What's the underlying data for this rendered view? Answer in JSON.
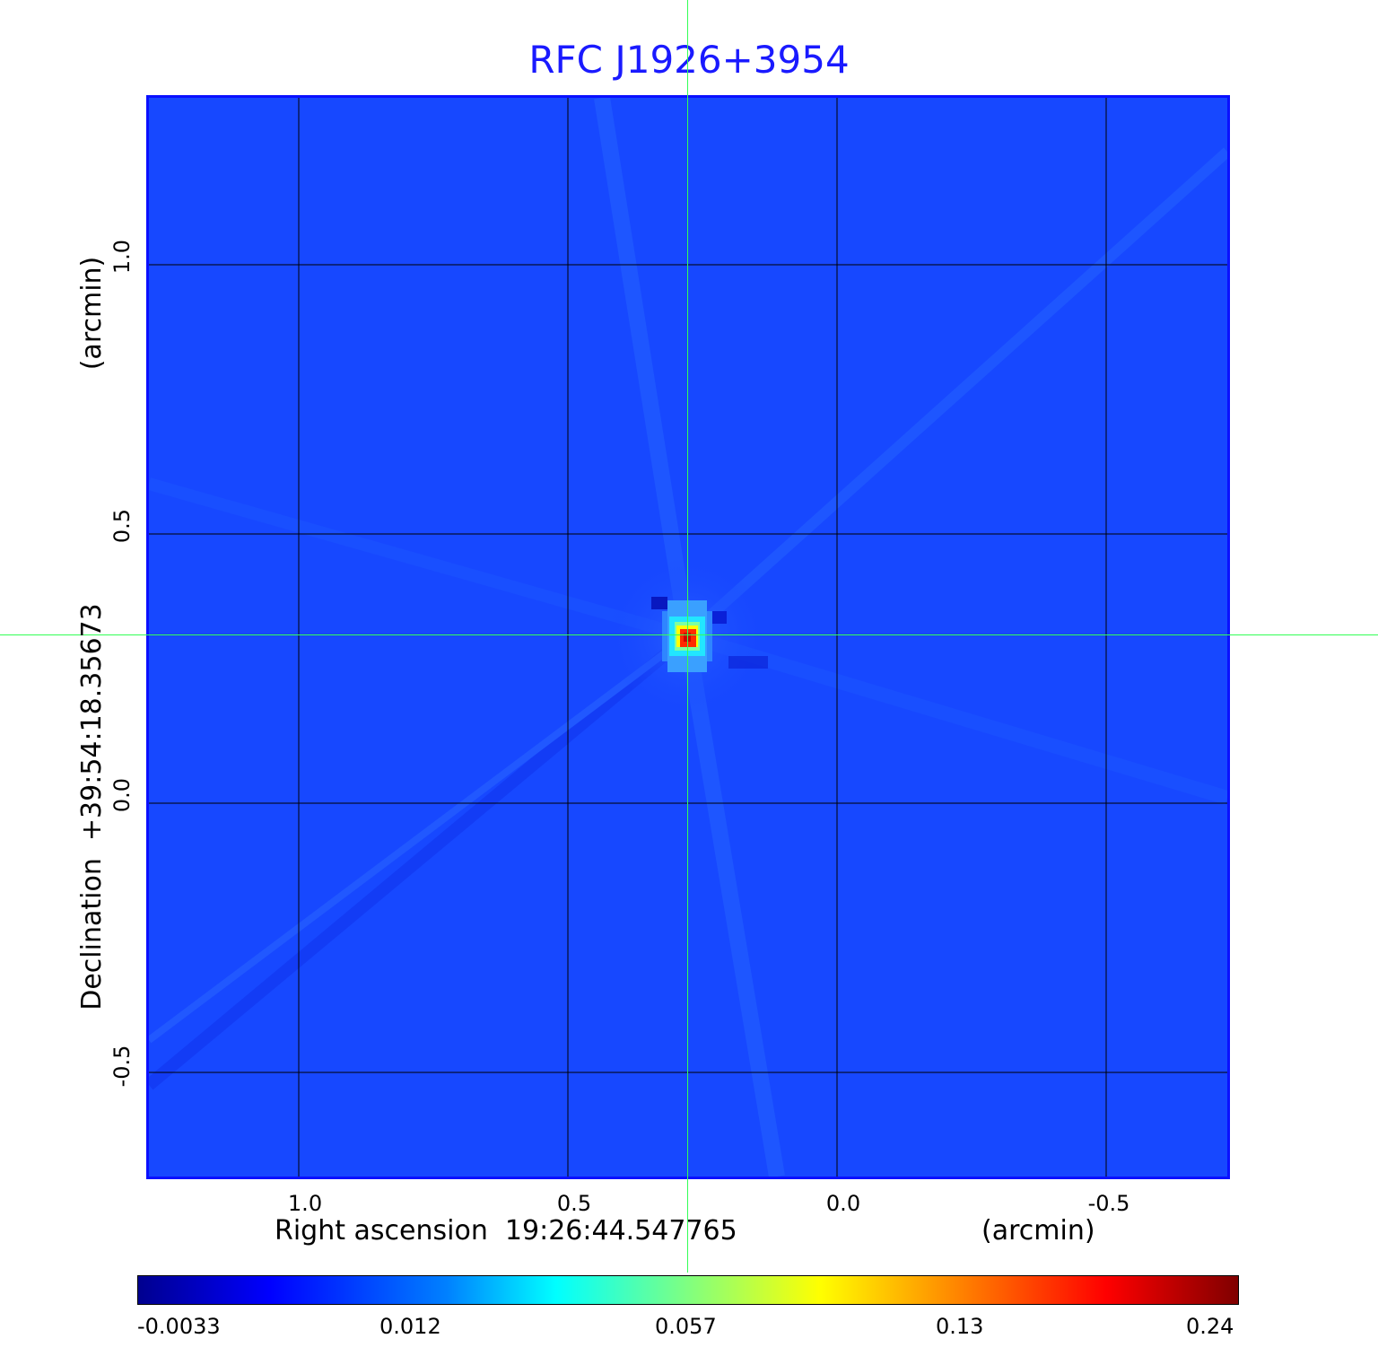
{
  "title": "RFC J1926+3954",
  "x_axis": {
    "title": "Right ascension  19:26:44.547765",
    "unit": "(arcmin)",
    "ticks": [
      "1.0",
      "0.5",
      "0.0",
      "-0.5"
    ]
  },
  "y_axis": {
    "title": "Declination  +39:54:18.35673",
    "unit": "(arcmin)",
    "ticks": [
      "1.0",
      "0.5",
      "0.0",
      "-0.5"
    ]
  },
  "colorbar": {
    "colormap": "jet",
    "labels": [
      "-0.0033",
      "0.012",
      "0.057",
      "0.13",
      "0.24"
    ]
  },
  "colors": {
    "title": "#1a1aff",
    "frame": "#0a10ff",
    "background_field": "#1748ff",
    "crosshair": "#33ff55",
    "grid": "#000000"
  }
}
